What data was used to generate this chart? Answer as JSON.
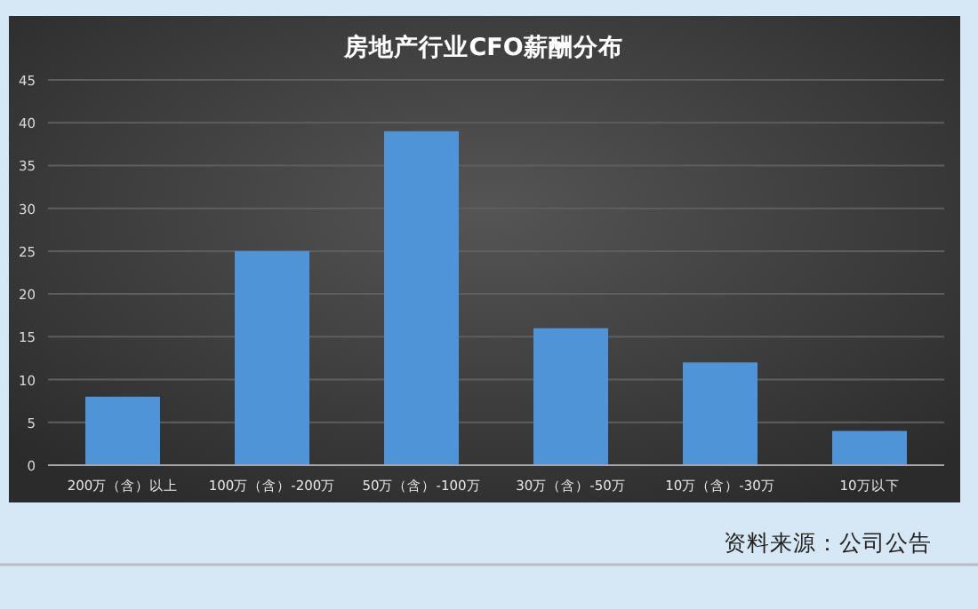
{
  "chart_data": {
    "type": "bar",
    "title": "房地产行业CFO薪酬分布",
    "categories": [
      "200万（含）以上",
      "100万（含）-200万",
      "50万（含）-100万",
      "30万（含）-50万",
      "10万（含）-30万",
      "10万以下"
    ],
    "values": [
      8,
      25,
      39,
      16,
      12,
      4
    ],
    "color": "#4f94d6",
    "ylim": [
      0,
      45
    ],
    "yticks": [
      0,
      5,
      10,
      15,
      20,
      25,
      30,
      35,
      40,
      45
    ],
    "grid": "y",
    "annotations": [
      "资料来源：公司公告"
    ]
  }
}
